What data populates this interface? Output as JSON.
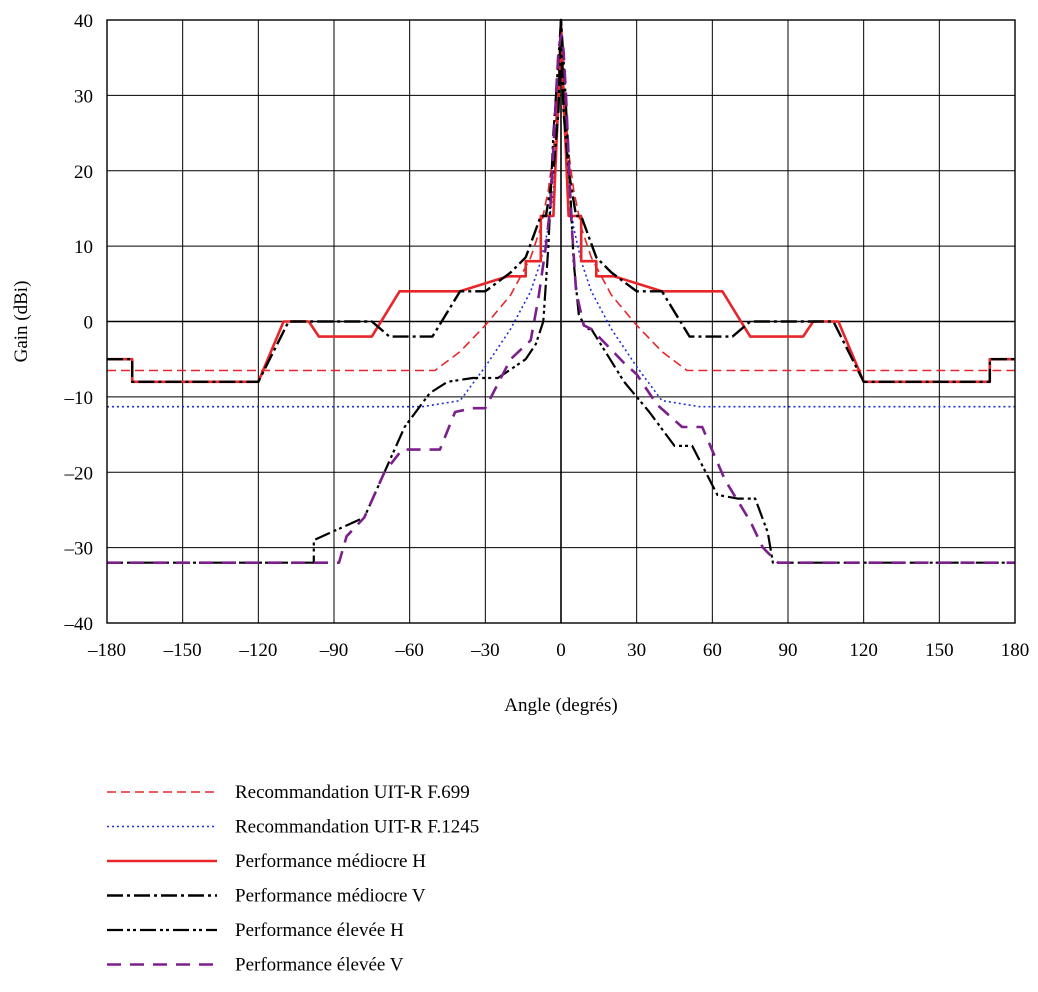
{
  "chart_data": {
    "type": "line",
    "title": "",
    "xlabel": "Angle (degrés)",
    "ylabel": "Gain (dBi)",
    "xlim": [
      -180,
      180
    ],
    "ylim": [
      -40,
      40
    ],
    "x_ticks": [
      -180,
      -150,
      -120,
      -90,
      -60,
      -30,
      0,
      30,
      60,
      90,
      120,
      150,
      180
    ],
    "x_tick_labels": [
      "–180",
      "–150",
      "–120",
      "–90",
      "–60",
      "–30",
      "0",
      "30",
      "60",
      "90",
      "120",
      "150",
      "180"
    ],
    "y_ticks": [
      40,
      30,
      20,
      10,
      0,
      -10,
      -20,
      -30,
      -40
    ],
    "y_tick_labels": [
      "40",
      "30",
      "20",
      "10",
      "0",
      "–10",
      "–20",
      "–30",
      "–40"
    ],
    "grid": true,
    "legend_position": "bottom",
    "series": [
      {
        "name": "Recommandation UIT-R F.699",
        "color": "#e8262a",
        "dash": "dashed",
        "x": [
          -180,
          -50,
          -40,
          -30,
          -20,
          -12,
          -8,
          -5,
          -3,
          -2,
          -1,
          0,
          1,
          2,
          3,
          5,
          8,
          12,
          20,
          30,
          40,
          50,
          180
        ],
        "y": [
          -6.5,
          -6.5,
          -4,
          -0.5,
          3.5,
          8.5,
          12.5,
          17.5,
          22.5,
          27,
          32,
          40,
          32,
          27,
          22.5,
          17.5,
          12.5,
          8.5,
          3.5,
          -0.5,
          -4,
          -6.5,
          -6.5
        ]
      },
      {
        "name": "Recommandation UIT-R F.1245",
        "color": "#1c2fd8",
        "dash": "dotted",
        "x": [
          -180,
          -55,
          -40,
          -30,
          -20,
          -12,
          -8,
          -5,
          -3,
          -2,
          -1,
          0,
          1,
          2,
          3,
          5,
          8,
          12,
          20,
          30,
          40,
          55,
          180
        ],
        "y": [
          -11.3,
          -11.3,
          -10.5,
          -6,
          -1,
          4,
          8,
          12.5,
          17.5,
          22,
          28,
          40,
          28,
          22,
          17.5,
          12.5,
          8,
          4,
          -1,
          -6,
          -10.5,
          -11.3,
          -11.3
        ]
      },
      {
        "name": "Performance médiocre H",
        "color": "#e8262a",
        "dash": "solid",
        "x": [
          -180,
          -170,
          -170,
          -120,
          -110,
          -100,
          -96,
          -75,
          -64,
          -40,
          -21,
          -14,
          -14,
          -8,
          -8,
          -3,
          -1,
          0,
          1,
          3,
          8,
          8,
          14,
          14,
          21,
          40,
          64,
          75,
          96,
          100,
          110,
          120,
          170,
          170,
          180
        ],
        "y": [
          -5,
          -5,
          -8,
          -8,
          0,
          0,
          -2,
          -2,
          4,
          4,
          6,
          6,
          8,
          8,
          14,
          14,
          30,
          40,
          30,
          14,
          14,
          8,
          8,
          6,
          6,
          4,
          4,
          -2,
          -2,
          0,
          0,
          -8,
          -8,
          -5,
          -5
        ],
        "line_width": 2.6
      },
      {
        "name": "Performance médiocre V",
        "color": "#000000",
        "dash": "dash-dot",
        "x": [
          -180,
          -170,
          -170,
          -120,
          -108,
          -75,
          -68,
          -51,
          -40,
          -30,
          -20,
          -14,
          -14,
          -8,
          -6,
          -3,
          -1,
          0,
          1,
          3,
          6,
          8,
          14,
          14,
          20,
          30,
          40,
          51,
          68,
          75,
          108,
          120,
          170,
          170,
          180
        ],
        "y": [
          -5,
          -5,
          -8,
          -8,
          0,
          0,
          -2,
          -2,
          4,
          4,
          6.5,
          8.5,
          8.5,
          14,
          14,
          20,
          28,
          40,
          28,
          20,
          14,
          14,
          8.5,
          8.5,
          6.5,
          4,
          4,
          -2,
          -2,
          0,
          0,
          -8,
          -8,
          -5,
          -5
        ],
        "line_width": 2.4
      },
      {
        "name": "Performance élevée H",
        "color": "#000000",
        "dash": "dash-dot-dot",
        "x": [
          -180,
          -98,
          -98,
          -78,
          -70,
          -62,
          -52,
          -45,
          -35,
          -25,
          -14,
          -14,
          -10,
          -7,
          -5,
          -3,
          -1,
          0,
          1,
          3,
          5,
          7,
          10,
          12,
          25,
          35,
          45,
          52,
          62,
          70,
          77,
          82,
          84,
          180
        ],
        "y": [
          -32,
          -32,
          -29,
          -26,
          -20,
          -14,
          -9.5,
          -8,
          -7.5,
          -7.5,
          -5,
          -5,
          -3,
          0,
          10,
          25,
          35,
          40,
          35,
          22,
          8,
          1,
          -1,
          -1,
          -8,
          -12,
          -16.5,
          -16.5,
          -23,
          -23.5,
          -23.5,
          -28,
          -32,
          -32
        ],
        "line_width": 2.2
      },
      {
        "name": "Performance élevée V",
        "color": "#7b1f8c",
        "dash": "long-dash",
        "x": [
          -180,
          -88,
          -85,
          -78,
          -70,
          -63,
          -48,
          -42,
          -35,
          -30,
          -20,
          -12,
          -9,
          -6,
          -4,
          -2,
          -1,
          0,
          1,
          2,
          4,
          6,
          9,
          12,
          25,
          30,
          38,
          48,
          56,
          65,
          75,
          80,
          86,
          180
        ],
        "y": [
          -32,
          -32,
          -28.5,
          -26,
          -20,
          -17,
          -17,
          -12,
          -11.5,
          -11.5,
          -5,
          -2.5,
          3,
          10,
          16,
          30,
          36,
          38,
          36,
          30,
          14,
          4,
          -0.5,
          -1,
          -5.5,
          -7,
          -11,
          -14,
          -14,
          -21,
          -26.5,
          -30,
          -32,
          -32
        ],
        "line_width": 2.6
      }
    ]
  }
}
